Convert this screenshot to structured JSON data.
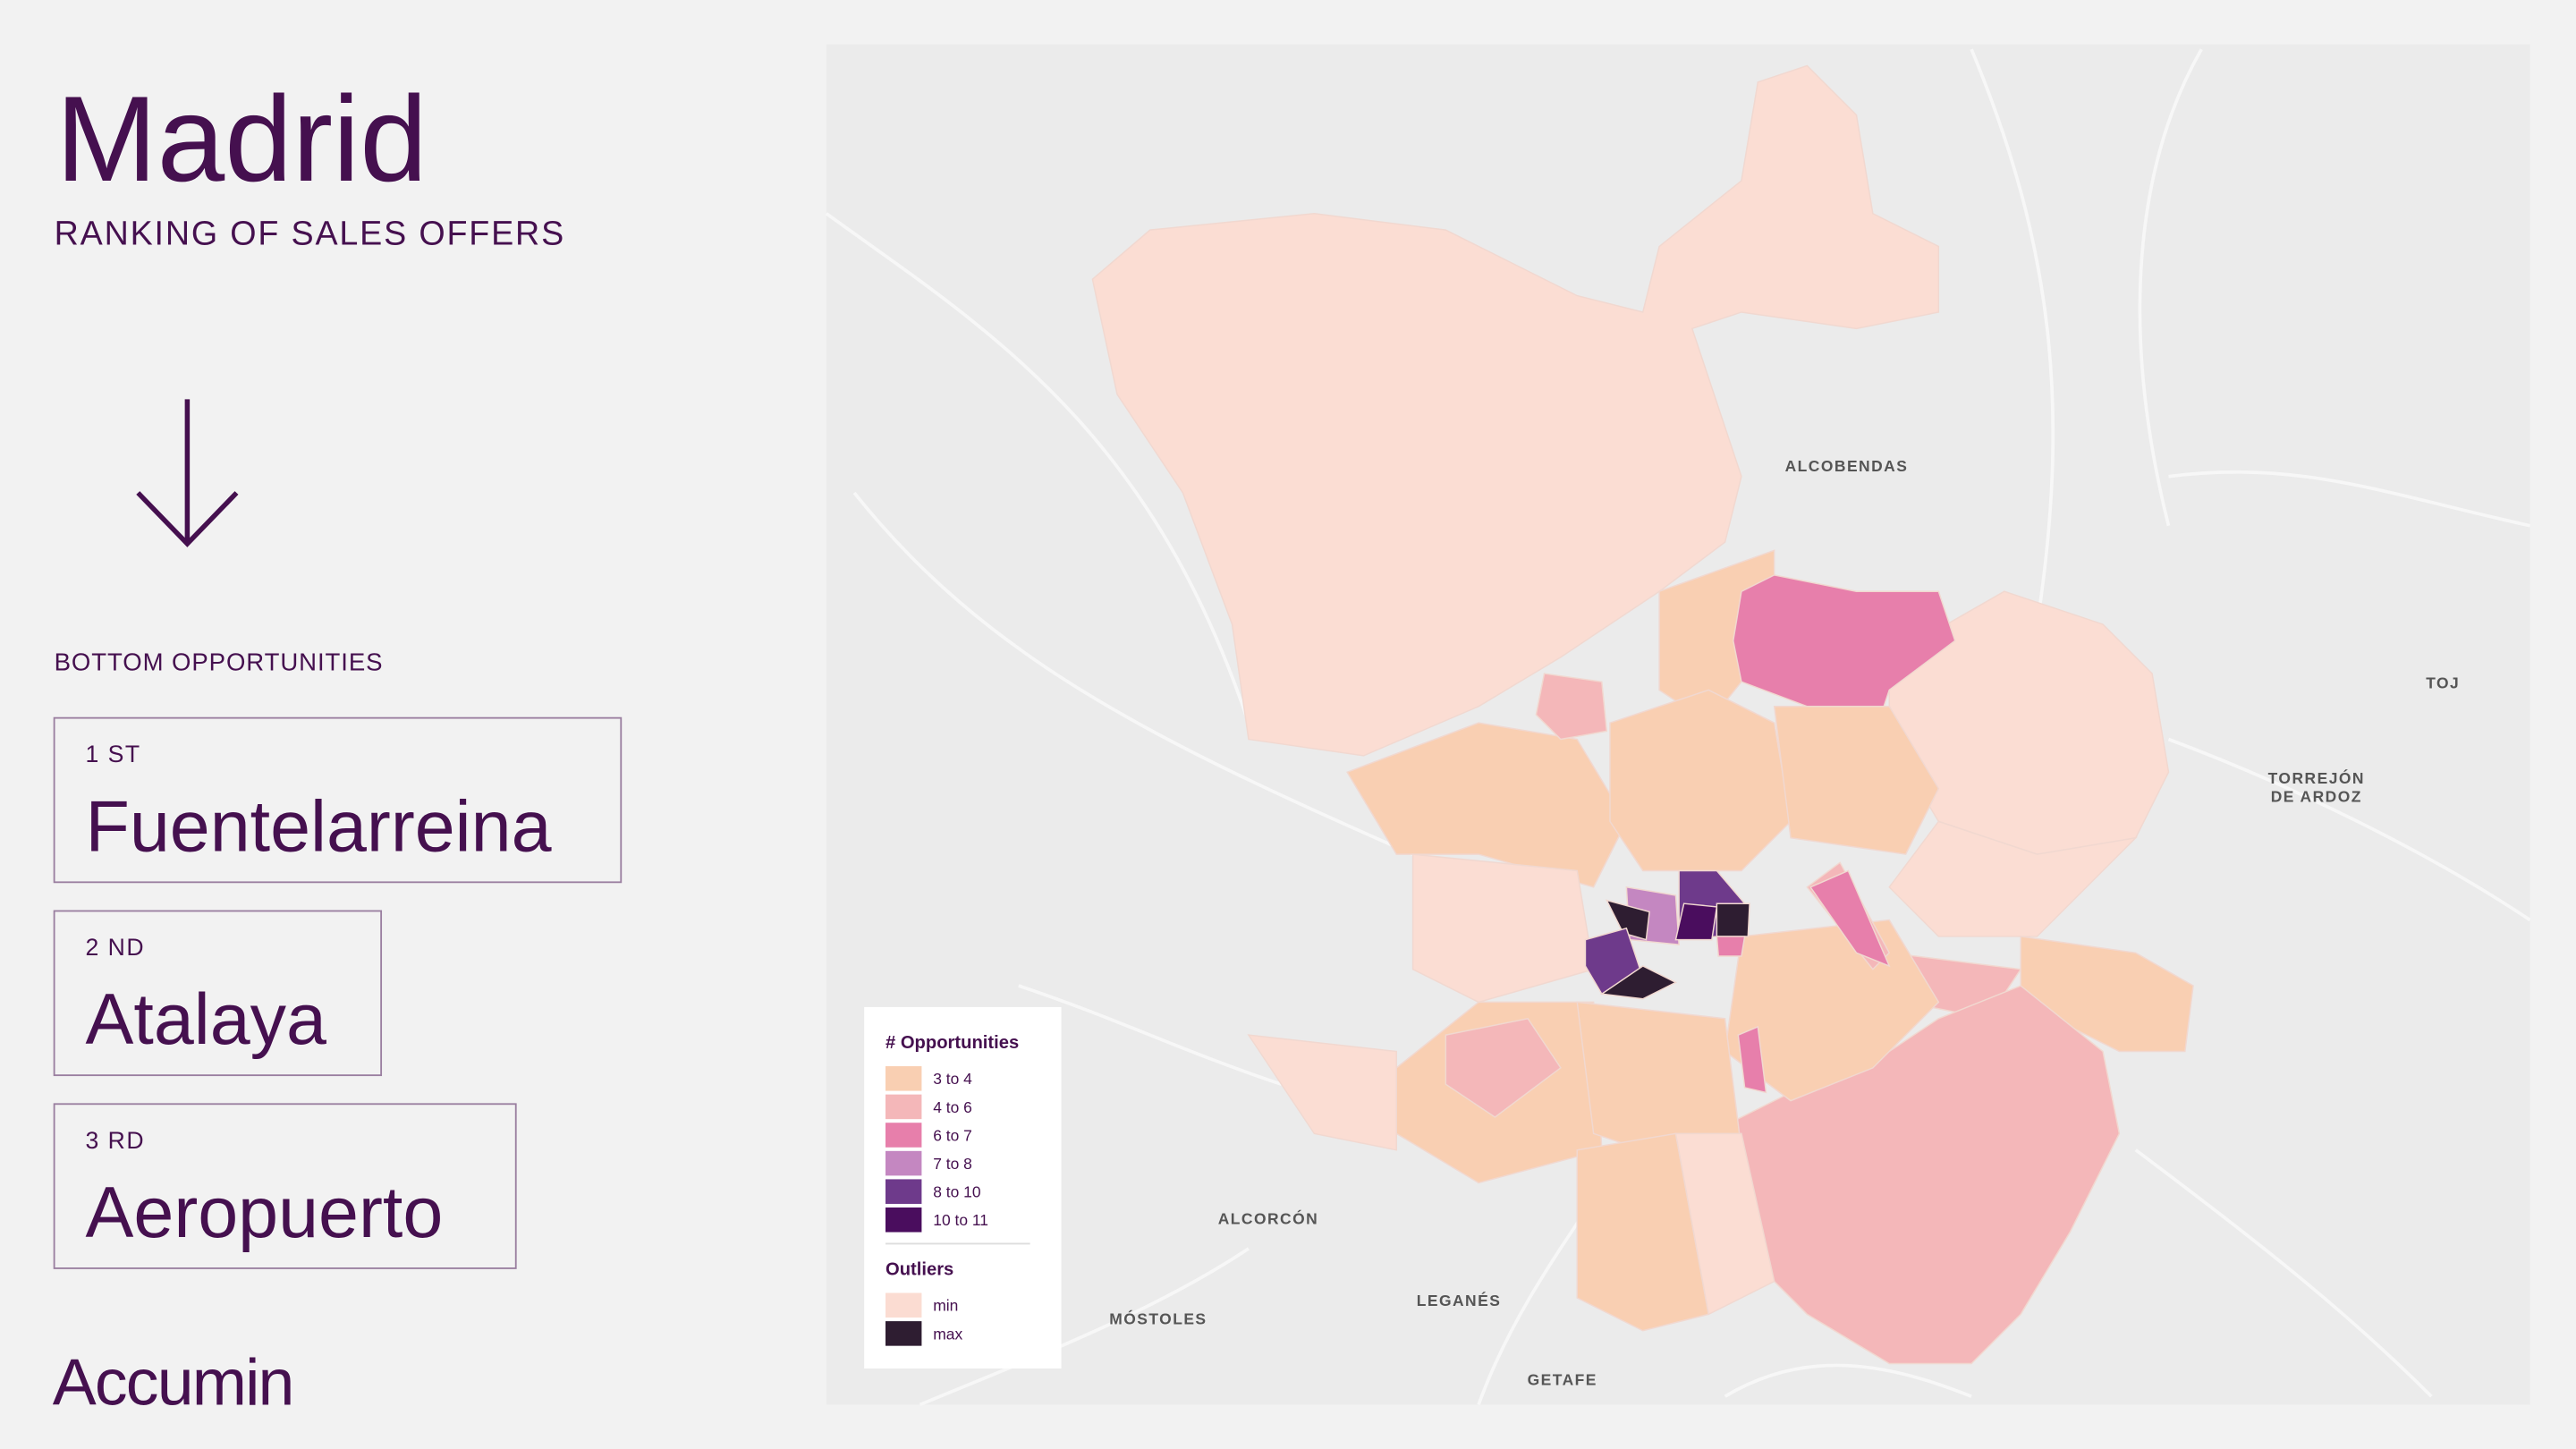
{
  "header": {
    "title": "Madrid",
    "subtitle": "RANKING OF SALES OFFERS"
  },
  "ranking": {
    "title": "BOTTOM OPPORTUNITIES",
    "items": [
      {
        "rank": "1 ST",
        "name": "Fuentelarreina"
      },
      {
        "rank": "2 ND",
        "name": "Atalaya"
      },
      {
        "rank": "3 RD",
        "name": "Aeropuerto"
      }
    ]
  },
  "logo": "Accumin",
  "map": {
    "labels": [
      "ALCOBENDAS",
      "TORREJÓN",
      "DE ARDOZ",
      "TOJ",
      "ALCORCÓN",
      "MÓSTOLES",
      "LEGANÉS",
      "GETAFE"
    ],
    "legend": {
      "title": "# Opportunities",
      "classes": [
        {
          "label": "3 to 4",
          "color": "#f9cfb2"
        },
        {
          "label": "4 to 6",
          "color": "#f4b7b9"
        },
        {
          "label": "6 to 7",
          "color": "#e77fab"
        },
        {
          "label": "7 to 8",
          "color": "#c487c1"
        },
        {
          "label": "8 to 10",
          "color": "#6e3a8b"
        },
        {
          "label": "10 to 11",
          "color": "#4a0d5e"
        }
      ],
      "outliers_title": "Outliers",
      "outliers": [
        {
          "label": "min",
          "color": "#fbdcd2"
        },
        {
          "label": "max",
          "color": "#2e1d31"
        }
      ]
    }
  }
}
